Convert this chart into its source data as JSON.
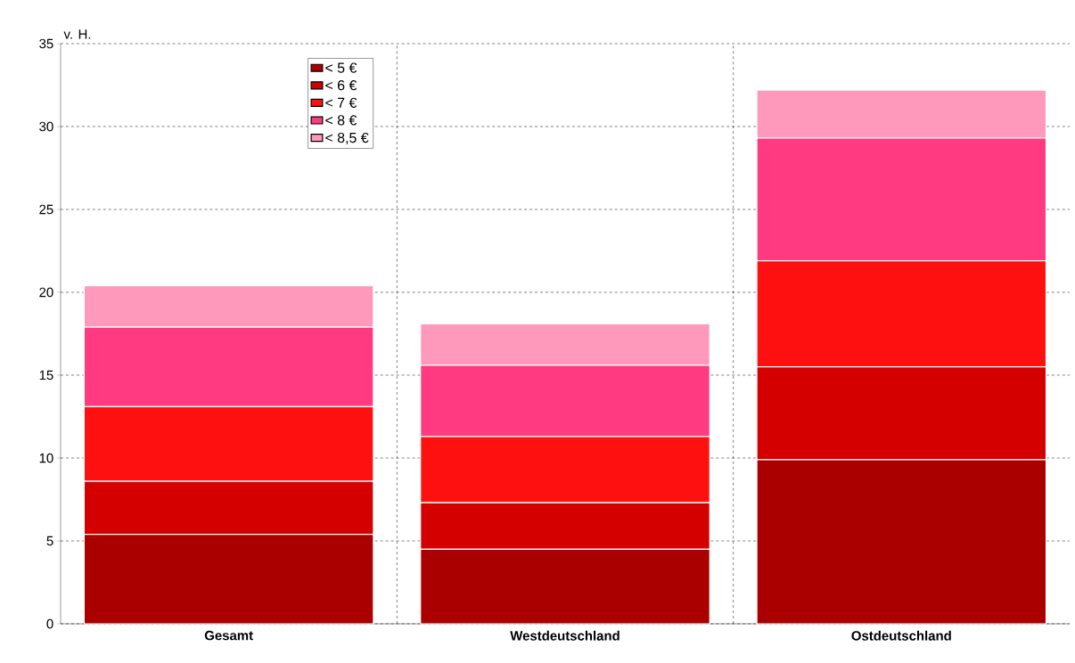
{
  "chart_data": {
    "type": "bar",
    "stacked": true,
    "ylabel": "v. H.",
    "categories": [
      "Gesamt",
      "Westdeutschland",
      "Ostdeutschland"
    ],
    "series": [
      {
        "name": "< 5 €",
        "color": "#aa0000",
        "values": [
          5.4,
          4.5,
          9.9
        ]
      },
      {
        "name": "< 6 €",
        "color": "#d40000",
        "values": [
          3.2,
          2.8,
          5.6
        ]
      },
      {
        "name": "< 7 €",
        "color": "#ff1010",
        "values": [
          4.5,
          4.0,
          6.4
        ]
      },
      {
        "name": "< 8 €",
        "color": "#ff3a80",
        "values": [
          4.8,
          4.3,
          7.4
        ]
      },
      {
        "name": "< 8,5 €",
        "color": "#ff99bb",
        "values": [
          2.5,
          2.5,
          2.9
        ]
      }
    ],
    "ylim": [
      0,
      35
    ],
    "yticks": [
      0,
      5,
      10,
      15,
      20,
      25,
      30,
      35
    ],
    "grid": true,
    "legend": "top left"
  }
}
